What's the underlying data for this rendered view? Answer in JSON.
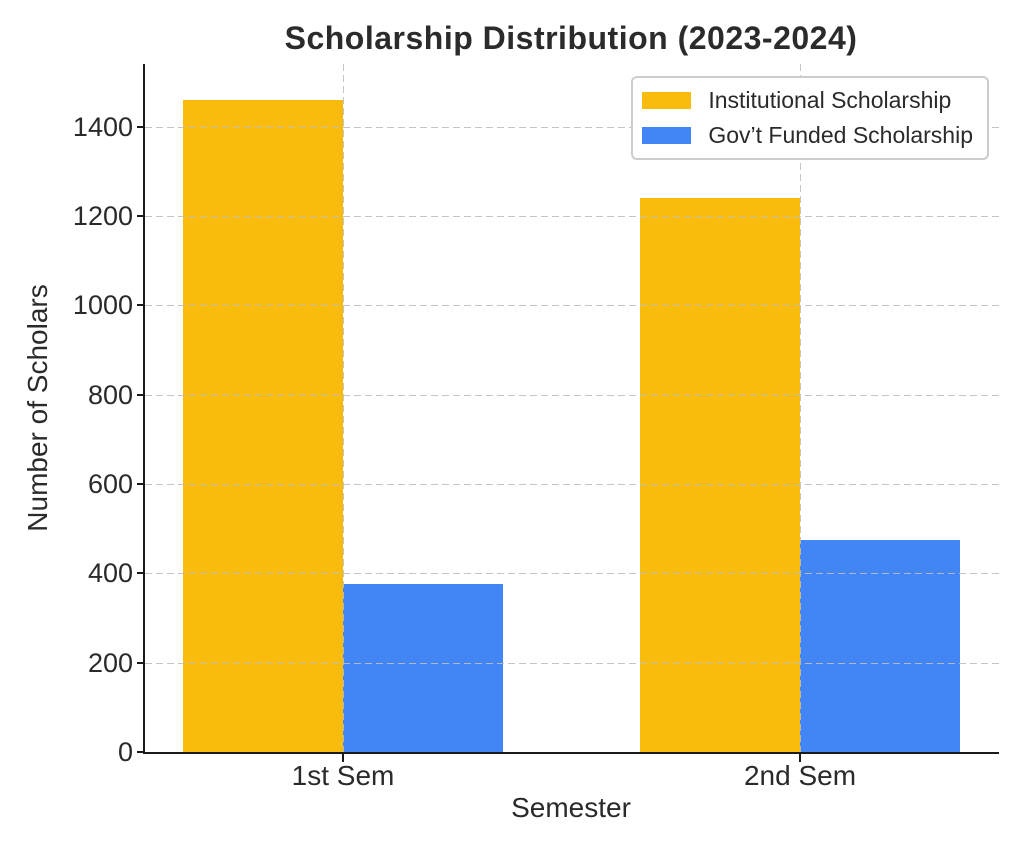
{
  "chart_data": {
    "type": "bar",
    "title": "Scholarship Distribution (2023-2024)",
    "xlabel": "Semester",
    "ylabel": "Number of Scholars",
    "categories": [
      "1st Sem",
      "2nd Sem"
    ],
    "series": [
      {
        "name": "Institutional Scholarship",
        "color": "#F9BB0C",
        "values": [
          1460,
          1240
        ]
      },
      {
        "name": "Gov’t Funded Scholarship",
        "color": "#4285F4",
        "values": [
          375,
          475
        ]
      }
    ],
    "yticks": [
      0,
      200,
      400,
      600,
      800,
      1000,
      1200,
      1400
    ],
    "ylim": [
      0,
      1540
    ],
    "grid": true,
    "grid_style": "dashed",
    "gridline_color": "#c8c8c8",
    "legend_position": "upper right",
    "background": "#ffffff",
    "text_color": "#2a2a2a",
    "axis_color": "#1a1a1a"
  }
}
